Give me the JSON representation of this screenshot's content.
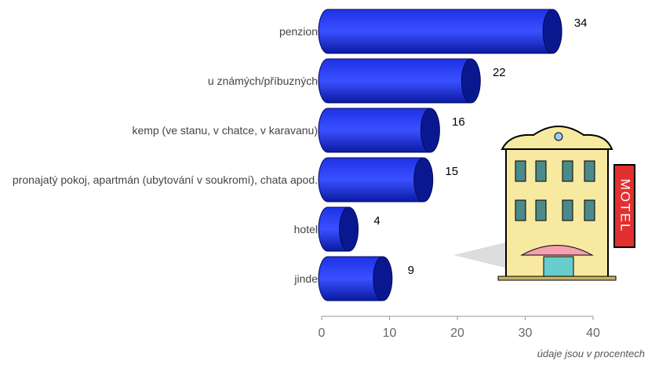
{
  "chart_data": {
    "type": "bar",
    "orientation": "horizontal",
    "categories": [
      "penzion",
      "u známých/příbuzných",
      "kemp (ve stanu, v chatce, v karavanu)",
      "pronajatý pokoj, apartmán (ubytování v soukromí), chata apod.",
      "hotel",
      "jinde"
    ],
    "values": [
      34,
      22,
      16,
      15,
      4,
      9
    ],
    "color": "#1e32e6",
    "xlim": [
      0,
      40
    ],
    "xticks": [
      0,
      10,
      20,
      30,
      40
    ],
    "annotation": "údaje jsou v procentech",
    "illustration_text": "MOTEL"
  }
}
